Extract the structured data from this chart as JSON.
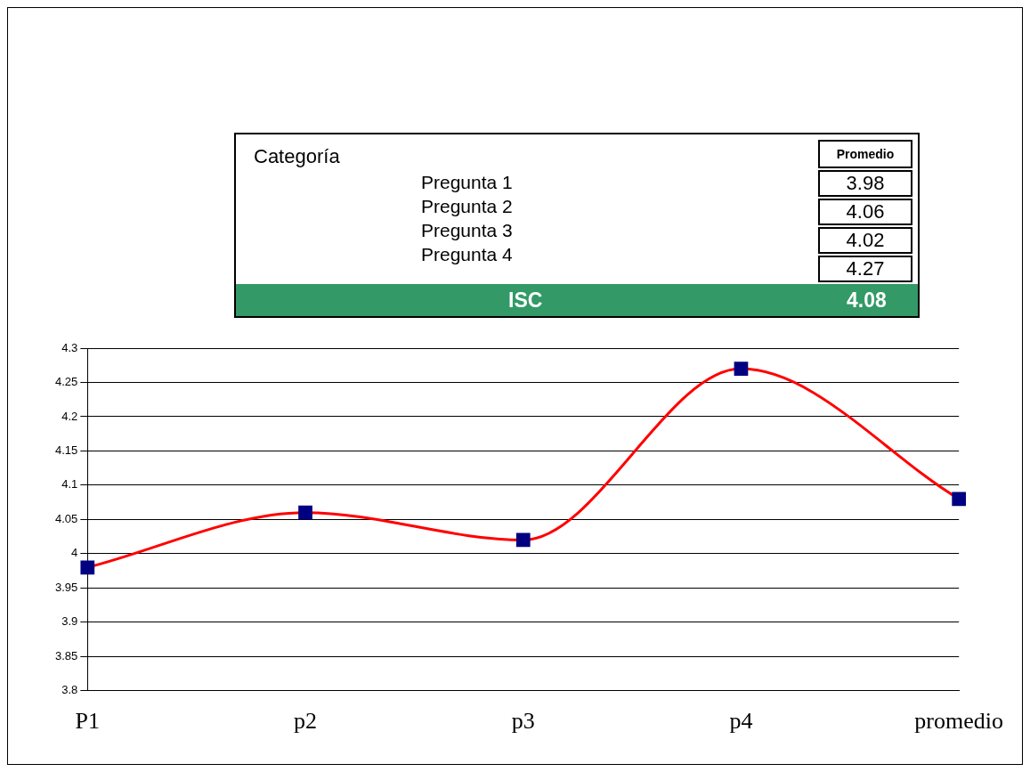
{
  "chart_data": {
    "type": "line",
    "categories": [
      "P1",
      "p2",
      "p3",
      "p4",
      "promedio"
    ],
    "series": [
      {
        "color": "#ff0000",
        "colors": [
          "#000080",
          "#000080",
          "#000080",
          "#000080",
          "#000080"
        ],
        "values": [
          3.98,
          4.06,
          4.02,
          4.27,
          4.08
        ]
      }
    ],
    "marker": "square",
    "ylim": [
      3.8,
      4.3
    ],
    "yticks": [
      3.8,
      3.85,
      3.9,
      3.95,
      4,
      4.05,
      4.1,
      4.15,
      4.2,
      4.25,
      4.3
    ],
    "grid": "y",
    "legend": false,
    "annotations": [
      "Categoría",
      "Promedio",
      "Pregunta 1",
      "3.98",
      "Pregunta 2",
      "4.06",
      "Pregunta 3",
      "4.02",
      "Pregunta 4",
      "4.27",
      "ISC",
      "4.08"
    ]
  }
}
